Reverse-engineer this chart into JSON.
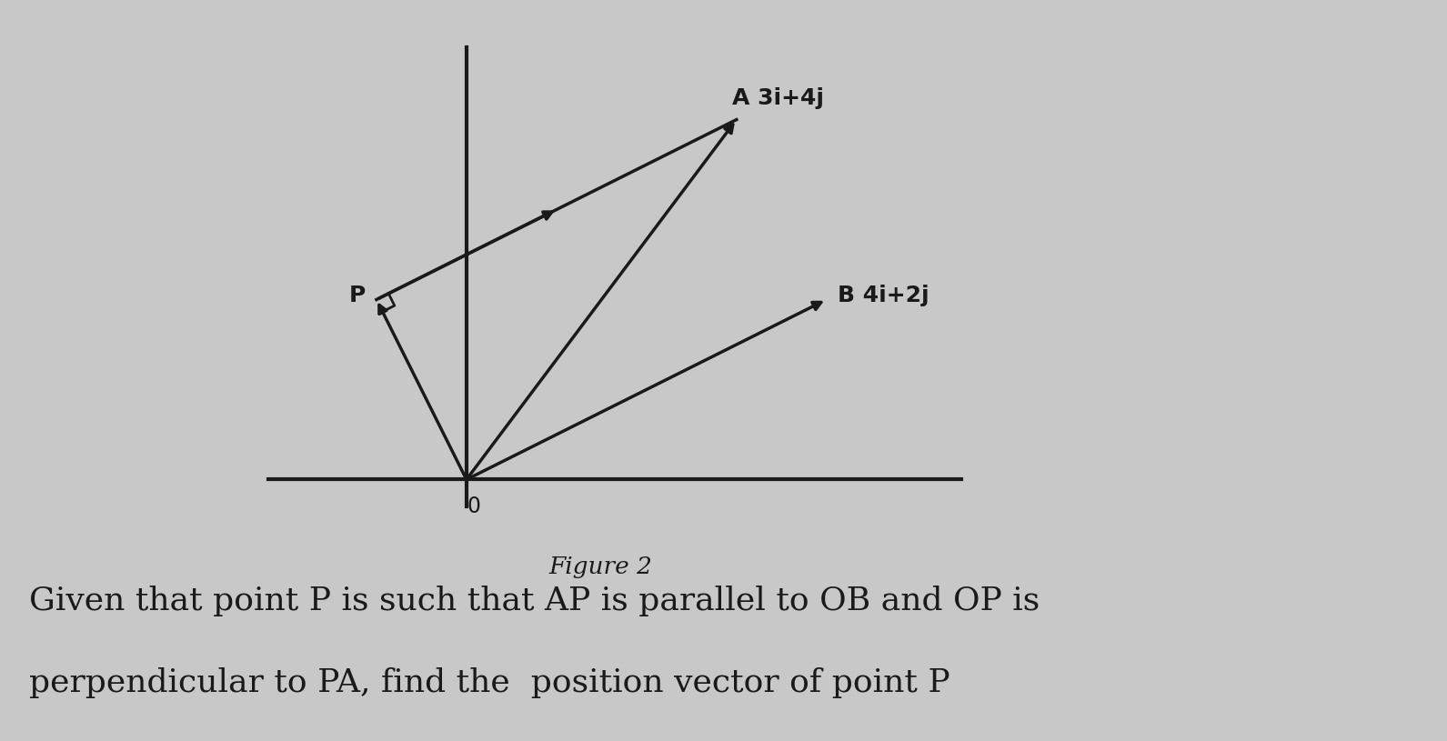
{
  "O": [
    0,
    0
  ],
  "A": [
    3,
    4
  ],
  "B": [
    4,
    2
  ],
  "P": [
    -1,
    2
  ],
  "bg_color": "#c8c8c8",
  "line_color": "#1a1a1a",
  "label_A": "A 3i+4j",
  "label_B": "B 4i+2j",
  "label_O": "0",
  "label_P": "P",
  "figure_caption": "Figure 2",
  "question_line1": "Given that point P is such that AP is parallel to OB and OP is",
  "question_line2": "perpendicular to PA, find the  position vector of point P",
  "axis_lw": 3.0,
  "arrow_lw": 2.5,
  "font_size_labels": 17,
  "font_size_caption": 19,
  "font_size_question": 26,
  "sq_size": 0.15
}
